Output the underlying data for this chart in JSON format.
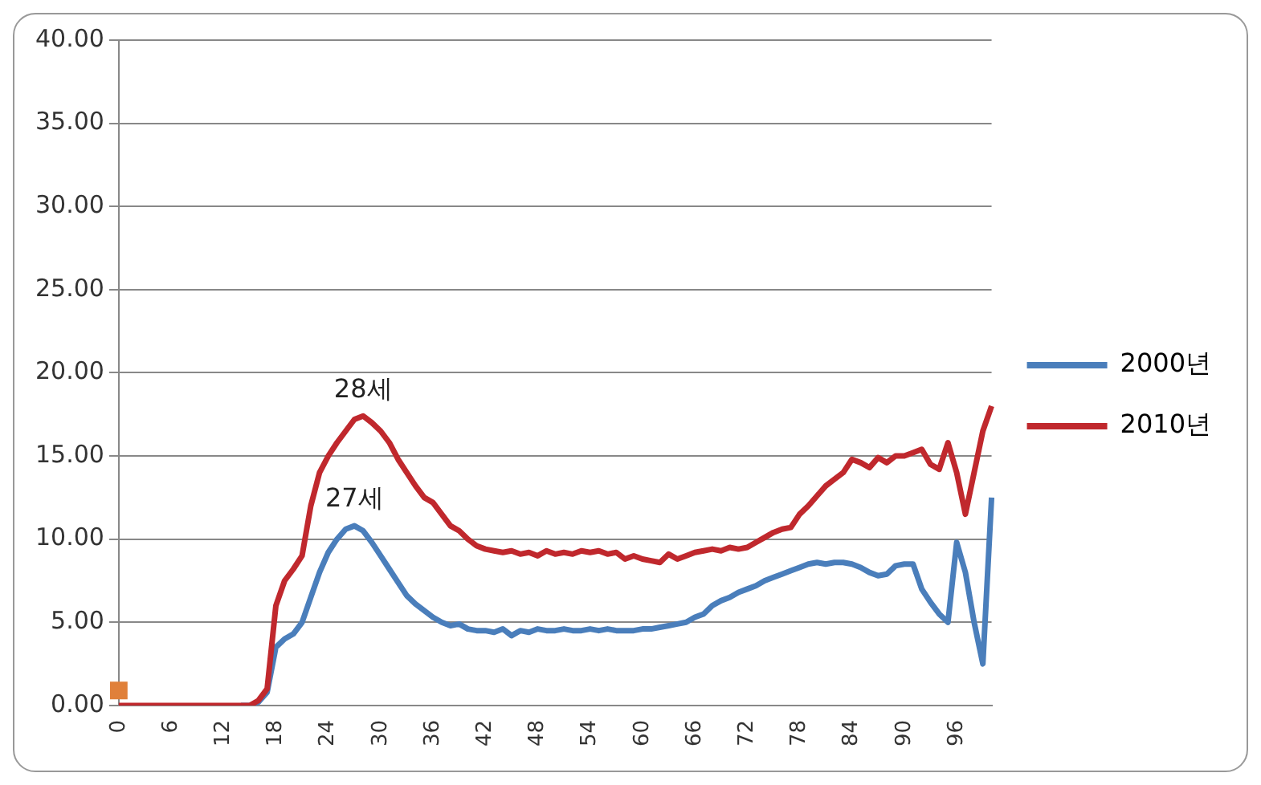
{
  "chart_data": {
    "type": "line",
    "categories": [
      "0",
      null,
      null,
      null,
      null,
      null,
      "6",
      null,
      null,
      null,
      null,
      null,
      "12",
      null,
      null,
      null,
      null,
      null,
      "18",
      null,
      null,
      null,
      null,
      null,
      "24",
      null,
      null,
      null,
      null,
      null,
      "30",
      null,
      null,
      null,
      null,
      null,
      "36",
      null,
      null,
      null,
      null,
      null,
      "42",
      null,
      null,
      null,
      null,
      null,
      "48",
      null,
      null,
      null,
      null,
      null,
      "54",
      null,
      null,
      null,
      null,
      null,
      "60",
      null,
      null,
      null,
      null,
      null,
      "66",
      null,
      null,
      null,
      null,
      null,
      "72",
      null,
      null,
      null,
      null,
      null,
      "78",
      null,
      null,
      null,
      null,
      null,
      "84",
      null,
      null,
      null,
      null,
      null,
      "90",
      null,
      null,
      null,
      null,
      null,
      "96",
      null,
      null,
      null,
      null
    ],
    "series": [
      {
        "name": "2000년",
        "color": "#4a7ebb",
        "values": [
          null,
          null,
          null,
          null,
          null,
          null,
          null,
          null,
          null,
          null,
          null,
          null,
          null,
          null,
          0,
          0,
          0.2,
          0.8,
          3.5,
          4.0,
          4.3,
          5.0,
          6.5,
          8.0,
          9.2,
          10.0,
          10.6,
          10.8,
          10.5,
          9.8,
          9.0,
          8.2,
          7.4,
          6.6,
          6.1,
          5.7,
          5.3,
          5.0,
          4.8,
          4.9,
          4.6,
          4.5,
          4.5,
          4.4,
          4.6,
          4.2,
          4.5,
          4.4,
          4.6,
          4.5,
          4.5,
          4.6,
          4.5,
          4.5,
          4.6,
          4.5,
          4.6,
          4.5,
          4.5,
          4.5,
          4.6,
          4.6,
          4.7,
          4.8,
          4.9,
          5.0,
          5.3,
          5.5,
          6.0,
          6.3,
          6.5,
          6.8,
          7.0,
          7.2,
          7.5,
          7.7,
          7.9,
          8.1,
          8.3,
          8.5,
          8.6,
          8.5,
          8.6,
          8.6,
          8.5,
          8.3,
          8.0,
          7.8,
          7.9,
          8.4,
          8.5,
          8.5,
          7.0,
          6.2,
          5.5,
          5.0,
          9.8,
          8.0,
          5.0,
          2.5,
          12.5
        ]
      },
      {
        "name": "2010년",
        "color": "#c0282d",
        "values": [
          0,
          0,
          0,
          0,
          0,
          0,
          0,
          0,
          0,
          0,
          0,
          0,
          0,
          0,
          0,
          0,
          0.3,
          1.0,
          6.0,
          7.5,
          8.2,
          9.0,
          12.0,
          14.0,
          15.0,
          15.8,
          16.5,
          17.2,
          17.4,
          17.0,
          16.5,
          15.8,
          14.8,
          14.0,
          13.2,
          12.5,
          12.2,
          11.5,
          10.8,
          10.5,
          10.0,
          9.6,
          9.4,
          9.3,
          9.2,
          9.3,
          9.1,
          9.2,
          9.0,
          9.3,
          9.1,
          9.2,
          9.1,
          9.3,
          9.2,
          9.3,
          9.1,
          9.2,
          8.8,
          9.0,
          8.8,
          8.7,
          8.6,
          9.1,
          8.8,
          9.0,
          9.2,
          9.3,
          9.4,
          9.3,
          9.5,
          9.4,
          9.5,
          9.8,
          10.1,
          10.4,
          10.6,
          10.7,
          11.5,
          12.0,
          12.6,
          13.2,
          13.6,
          14.0,
          14.8,
          14.6,
          14.3,
          14.9,
          14.6,
          15.0,
          15.0,
          15.2,
          15.4,
          14.5,
          14.2,
          15.8,
          14.0,
          11.5,
          14.0,
          16.5,
          18.0
        ]
      },
      {
        "type": "scatter",
        "color": "#e0803a",
        "marker": "square",
        "x": [
          "0"
        ],
        "values": [
          0.9
        ]
      }
    ],
    "ylim": [
      0,
      40
    ],
    "yticks": [
      {
        "value": 0,
        "label": "0.00"
      },
      {
        "value": 5,
        "label": "5.00"
      },
      {
        "value": 10,
        "label": "10.00"
      },
      {
        "value": 15,
        "label": "15.00"
      },
      {
        "value": 20,
        "label": "20.00"
      },
      {
        "value": 25,
        "label": "25.00"
      },
      {
        "value": 30,
        "label": "30.00"
      },
      {
        "value": 35,
        "label": "35.00"
      },
      {
        "value": 40,
        "label": "40.00"
      }
    ],
    "annotations": [
      "27세",
      "28세"
    ],
    "grid": "y",
    "legend": "right",
    "marker": "none",
    "line_style": "solid"
  }
}
